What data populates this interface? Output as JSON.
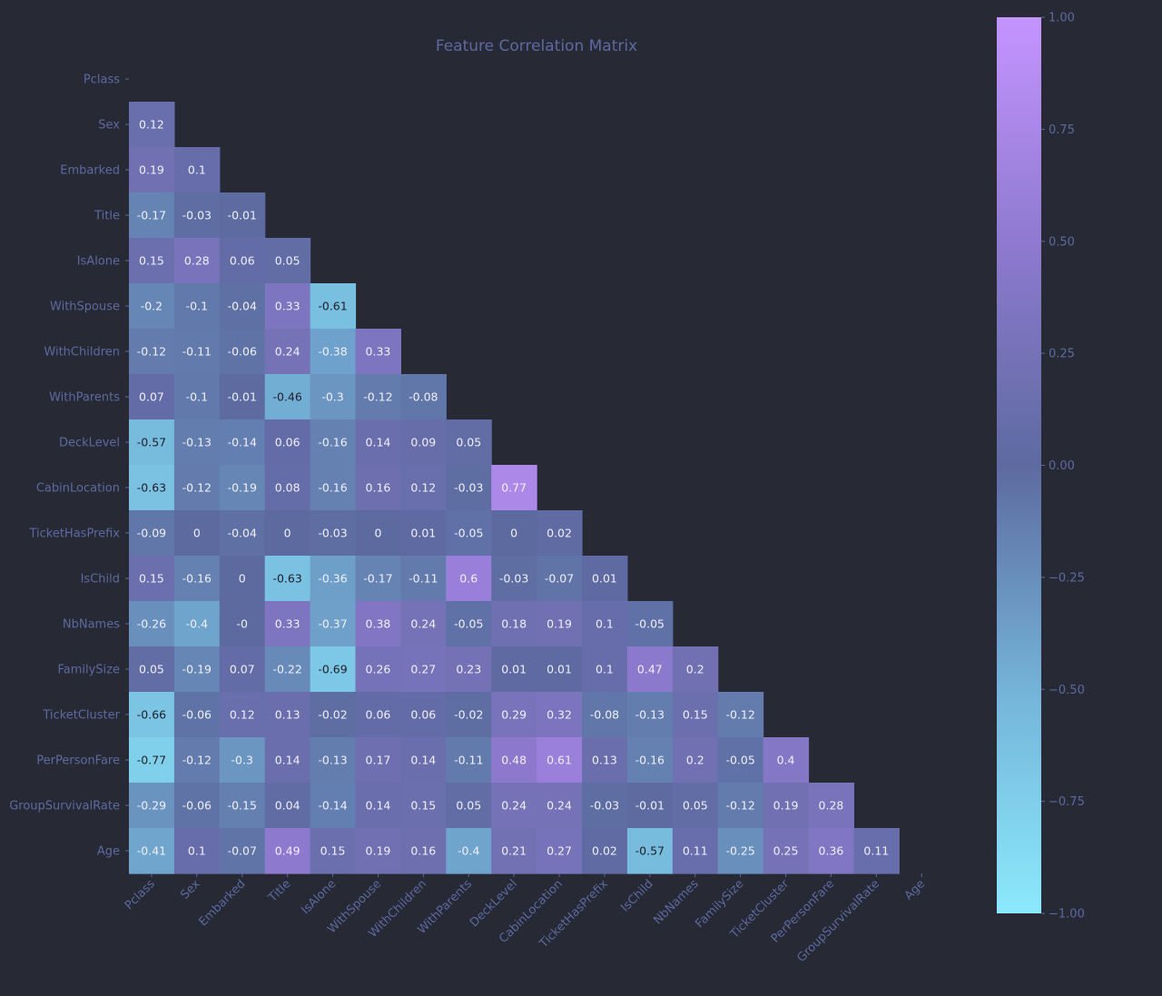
{
  "chart_data": {
    "type": "heatmap",
    "title": "Feature Correlation Matrix",
    "labels": [
      "Pclass",
      "Sex",
      "Embarked",
      "Title",
      "IsAlone",
      "WithSpouse",
      "WithChildren",
      "WithParents",
      "DeckLevel",
      "CabinLocation",
      "TicketHasPrefix",
      "IsChild",
      "NbNames",
      "FamilySize",
      "TicketCluster",
      "PerPersonFare",
      "GroupSurvivalRate",
      "Age"
    ],
    "lower_triangle_values": [
      [],
      [
        "0.12"
      ],
      [
        "0.19",
        "0.1"
      ],
      [
        "-0.17",
        "-0.03",
        "-0.01"
      ],
      [
        "0.15",
        "0.28",
        "0.06",
        "0.05"
      ],
      [
        "-0.2",
        "-0.1",
        "-0.04",
        "0.33",
        "-0.61"
      ],
      [
        "-0.12",
        "-0.11",
        "-0.06",
        "0.24",
        "-0.38",
        "0.33"
      ],
      [
        "0.07",
        "-0.1",
        "-0.01",
        "-0.46",
        "-0.3",
        "-0.12",
        "-0.08"
      ],
      [
        "-0.57",
        "-0.13",
        "-0.14",
        "0.06",
        "-0.16",
        "0.14",
        "0.09",
        "0.05"
      ],
      [
        "-0.63",
        "-0.12",
        "-0.19",
        "0.08",
        "-0.16",
        "0.16",
        "0.12",
        "-0.03",
        "0.77"
      ],
      [
        "-0.09",
        "0",
        "-0.04",
        "0",
        "-0.03",
        "0",
        "0.01",
        "-0.05",
        "0",
        "0.02"
      ],
      [
        "0.15",
        "-0.16",
        "0",
        "-0.63",
        "-0.36",
        "-0.17",
        "-0.11",
        "0.6",
        "-0.03",
        "-0.07",
        "0.01"
      ],
      [
        "-0.26",
        "-0.4",
        "-0",
        "0.33",
        "-0.37",
        "0.38",
        "0.24",
        "-0.05",
        "0.18",
        "0.19",
        "0.1",
        "-0.05"
      ],
      [
        "0.05",
        "-0.19",
        "0.07",
        "-0.22",
        "-0.69",
        "0.26",
        "0.27",
        "0.23",
        "0.01",
        "0.01",
        "0.1",
        "0.47",
        "0.2"
      ],
      [
        "-0.66",
        "-0.06",
        "0.12",
        "0.13",
        "-0.02",
        "0.06",
        "0.06",
        "-0.02",
        "0.29",
        "0.32",
        "-0.08",
        "-0.13",
        "0.15",
        "-0.12"
      ],
      [
        "-0.77",
        "-0.12",
        "-0.3",
        "0.14",
        "-0.13",
        "0.17",
        "0.14",
        "-0.11",
        "0.48",
        "0.61",
        "0.13",
        "-0.16",
        "0.2",
        "-0.05",
        "0.4"
      ],
      [
        "-0.29",
        "-0.06",
        "-0.15",
        "0.04",
        "-0.14",
        "0.14",
        "0.15",
        "0.05",
        "0.24",
        "0.24",
        "-0.03",
        "-0.01",
        "0.05",
        "-0.12",
        "0.19",
        "0.28"
      ],
      [
        "-0.41",
        "0.1",
        "-0.07",
        "0.49",
        "0.15",
        "0.19",
        "0.16",
        "-0.4",
        "0.21",
        "0.27",
        "0.02",
        "-0.57",
        "0.11",
        "-0.25",
        "0.25",
        "0.36",
        "0.11"
      ]
    ],
    "colorbar": {
      "range": [
        -1,
        1
      ],
      "ticks": [
        "1.00",
        "0.75",
        "0.50",
        "0.25",
        "0.00",
        "−0.25",
        "−0.50",
        "−0.75",
        "−1.00"
      ],
      "tick_values": [
        1,
        0.75,
        0.5,
        0.25,
        0,
        -0.25,
        -0.5,
        -0.75,
        -1
      ]
    },
    "colors": {
      "background": "#272935",
      "label": "#5d6aa0",
      "title": "#5d6aa0",
      "stops": [
        {
          "v": -1,
          "c": "#8be9fd"
        },
        {
          "v": -0.5,
          "c": "#74b3d8"
        },
        {
          "v": 0,
          "c": "#5d6aa0"
        },
        {
          "v": 0.5,
          "c": "#8e7ad0"
        },
        {
          "v": 1,
          "c": "#c594ff"
        }
      ]
    }
  }
}
